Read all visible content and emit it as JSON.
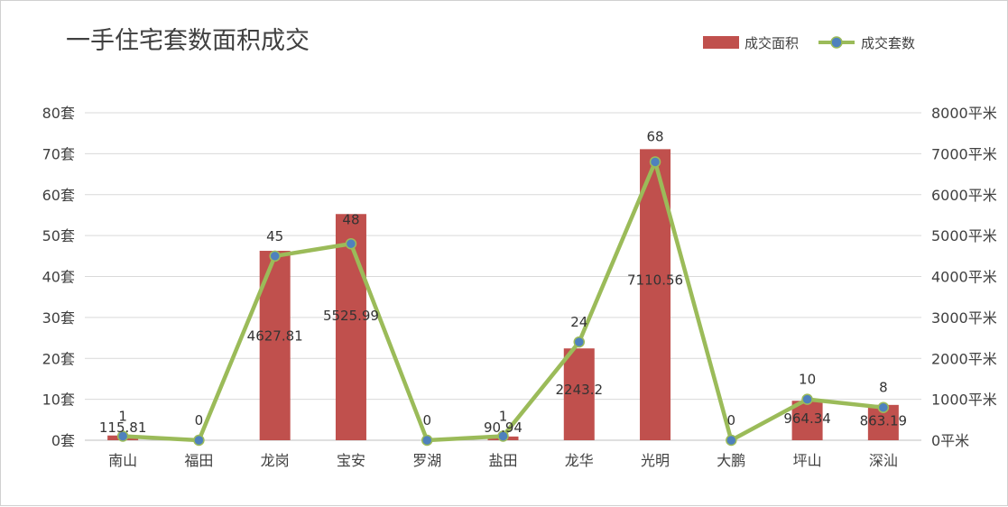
{
  "chart_data": {
    "type": "bar",
    "title": "一手住宅套数面积成交",
    "categories": [
      "南山",
      "福田",
      "龙岗",
      "宝安",
      "罗湖",
      "盐田",
      "龙华",
      "光明",
      "大鹏",
      "坪山",
      "深汕"
    ],
    "series": [
      {
        "name": "成交面积",
        "type": "bar",
        "axis": "right",
        "color": "#c0504d",
        "values": [
          115.81,
          0,
          4627.81,
          5525.99,
          0,
          90.94,
          2243.2,
          7110.56,
          0,
          964.34,
          863.19
        ],
        "labels": [
          "115.81",
          "",
          "4627.81",
          "5525.99",
          "",
          "90.94",
          "2243.2",
          "7110.56",
          "",
          "964.34",
          "863.19"
        ]
      },
      {
        "name": "成交套数",
        "type": "line",
        "axis": "left",
        "color": "#9bbb59",
        "marker_color": "#4f81bd",
        "values": [
          1,
          0,
          45,
          48,
          0,
          1,
          24,
          68,
          0,
          10,
          8
        ],
        "labels": [
          "1",
          "0",
          "45",
          "48",
          "0",
          "1",
          "24",
          "68",
          "0",
          "10",
          "8"
        ]
      }
    ],
    "y_left": {
      "ylim": [
        0,
        80
      ],
      "ticks": [
        "0套",
        "10套",
        "20套",
        "30套",
        "40套",
        "50套",
        "60套",
        "70套",
        "80套"
      ]
    },
    "y_right": {
      "ylim": [
        0,
        8000
      ],
      "ticks": [
        "0平米",
        "1000平米",
        "2000平米",
        "3000平米",
        "4000平米",
        "5000平米",
        "6000平米",
        "7000平米",
        "8000平米"
      ]
    },
    "grid": true,
    "legend_position": "top-right"
  }
}
